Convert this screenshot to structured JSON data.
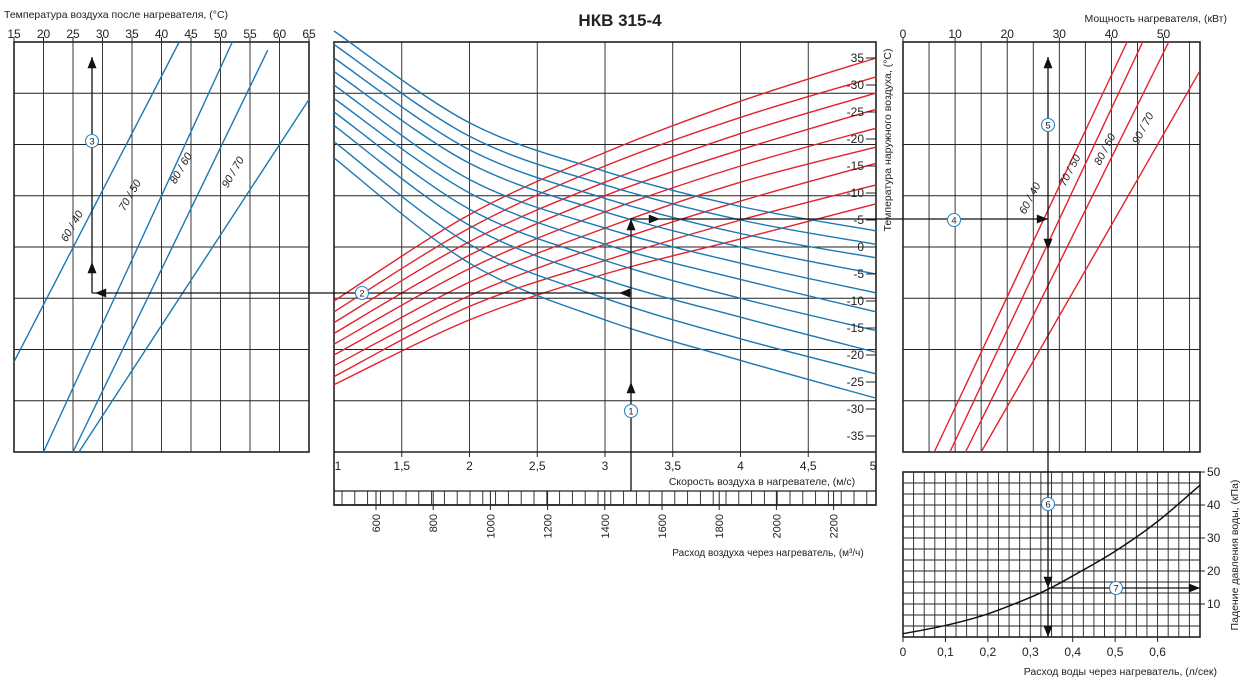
{
  "colors": {
    "red": "#e5202b",
    "blue": "#1a78b4",
    "grid": "#222222",
    "arrow": "#111111",
    "marker": "#2a86c4",
    "curve": "#111111"
  },
  "chart_data": [
    {
      "id": "main",
      "type": "line",
      "title": "НКВ 315-4",
      "xlabel": "Скорость воздуха в нагревателе, (м/с)",
      "x2label": "Расход воздуха через нагреватель, (м³/ч)",
      "ylabel": "Температура наружного воздуха, (°С)",
      "xlim": [
        1,
        5
      ],
      "x_ticks": [
        "1",
        "1,5",
        "2",
        "2,5",
        "3",
        "3,5",
        "4",
        "4,5",
        "5"
      ],
      "x2_ticks": [
        "600",
        "800",
        "1000",
        "1200",
        "1400",
        "1600",
        "1800",
        "2000",
        "2200"
      ],
      "y_ticks": [
        "35",
        "-30",
        "-25",
        "-20",
        "-15",
        "-10",
        "-5",
        "0",
        "-5",
        "-10",
        "-15",
        "-20",
        "-25",
        "-30",
        "-35"
      ],
      "red_series": [
        {
          "x": [
            1,
            2,
            3,
            4,
            5
          ],
          "y": [
            -10.0,
            6.0,
            17.5,
            27.0,
            35.0
          ]
        },
        {
          "x": [
            1,
            2,
            3,
            4,
            5
          ],
          "y": [
            -12.0,
            3.5,
            15.0,
            24.0,
            31.5
          ]
        },
        {
          "x": [
            1,
            2,
            3,
            4,
            5
          ],
          "y": [
            -14.0,
            1.0,
            12.0,
            21.0,
            28.5
          ]
        },
        {
          "x": [
            1,
            2,
            3,
            4,
            5
          ],
          "y": [
            -16.0,
            -1.5,
            9.5,
            18.0,
            25.5
          ]
        },
        {
          "x": [
            1,
            2,
            3,
            4,
            5
          ],
          "y": [
            -18.0,
            -4.0,
            6.5,
            15.0,
            22.0
          ]
        },
        {
          "x": [
            1,
            2,
            3,
            4,
            5
          ],
          "y": [
            -20.0,
            -6.5,
            3.5,
            12.0,
            18.5
          ]
        },
        {
          "x": [
            1,
            2,
            3,
            4,
            5
          ],
          "y": [
            -22.0,
            -9.0,
            0.5,
            8.5,
            15.5
          ]
        },
        {
          "x": [
            1,
            2,
            3,
            4,
            5
          ],
          "y": [
            -24.0,
            -11.0,
            -2.5,
            5.0,
            11.5
          ]
        },
        {
          "x": [
            1,
            2,
            3,
            4,
            5
          ],
          "y": [
            -25.5,
            -13.5,
            -5.0,
            1.5,
            8.0
          ]
        }
      ],
      "blue_series": [
        {
          "x": [
            1,
            2,
            3,
            4,
            5
          ],
          "y": [
            40.0,
            23.0,
            14.0,
            7.5,
            3.0
          ]
        },
        {
          "x": [
            1,
            2,
            3,
            4,
            5
          ],
          "y": [
            37.5,
            20.5,
            11.5,
            5.0,
            0.5
          ]
        },
        {
          "x": [
            1,
            2,
            3,
            4,
            5
          ],
          "y": [
            35.0,
            18.0,
            9.0,
            2.5,
            -2.0
          ]
        },
        {
          "x": [
            1,
            2,
            3,
            4,
            5
          ],
          "y": [
            32.5,
            15.5,
            6.5,
            0.0,
            -5.0
          ]
        },
        {
          "x": [
            1,
            2,
            3,
            4,
            5
          ],
          "y": [
            30.0,
            12.5,
            3.5,
            -3.0,
            -8.5
          ]
        },
        {
          "x": [
            1,
            2,
            3,
            4,
            5
          ],
          "y": [
            27.5,
            10.0,
            0.5,
            -6.0,
            -12.0
          ]
        },
        {
          "x": [
            1,
            2,
            3,
            4,
            5
          ],
          "y": [
            25.0,
            7.0,
            -2.5,
            -9.5,
            -15.5
          ]
        },
        {
          "x": [
            1,
            2,
            3,
            4,
            5
          ],
          "y": [
            22.5,
            4.0,
            -6.0,
            -13.0,
            -19.5
          ]
        },
        {
          "x": [
            1,
            2,
            3,
            4,
            5
          ],
          "y": [
            19.5,
            0.5,
            -9.5,
            -17.0,
            -23.5
          ]
        },
        {
          "x": [
            1,
            2,
            3,
            4,
            5
          ],
          "y": [
            16.5,
            -3.0,
            -13.5,
            -21.0,
            -28.0
          ]
        }
      ]
    },
    {
      "id": "left",
      "type": "line",
      "xlabel": "Температура воздуха после нагревателя, (°С)",
      "xlim": [
        15,
        65
      ],
      "x_ticks": [
        "15",
        "20",
        "25",
        "30",
        "35",
        "40",
        "45",
        "50",
        "55",
        "60",
        "65"
      ],
      "series": [
        {
          "name": "60 / 40",
          "x": [
            15,
            43
          ],
          "y": [
            0.22,
            1.0
          ]
        },
        {
          "name": "70 / 50",
          "x": [
            20,
            52
          ],
          "y": [
            0.0,
            1.0
          ]
        },
        {
          "name": "80 / 60",
          "x": [
            25,
            58
          ],
          "y": [
            0.0,
            0.98
          ]
        },
        {
          "name": "90 / 70",
          "x": [
            26,
            65
          ],
          "y": [
            0.0,
            0.86
          ]
        }
      ]
    },
    {
      "id": "power",
      "type": "line",
      "xlabel": "Мощность нагревателя, (кВт)",
      "xlim": [
        0,
        57
      ],
      "x_ticks": [
        "0",
        "10",
        "20",
        "30",
        "40",
        "50"
      ],
      "series": [
        {
          "name": "60 / 40",
          "x": [
            6,
            43
          ],
          "y": [
            0.0,
            1.0
          ]
        },
        {
          "name": "70 / 50",
          "x": [
            9,
            46
          ],
          "y": [
            0.0,
            1.0
          ]
        },
        {
          "name": "80 / 60",
          "x": [
            12,
            51
          ],
          "y": [
            0.0,
            1.0
          ]
        },
        {
          "name": "90 / 70",
          "x": [
            15,
            57
          ],
          "y": [
            0.0,
            0.93
          ]
        }
      ]
    },
    {
      "id": "pressure",
      "type": "line",
      "xlabel": "Расход воды через нагреватель, (л/сек)",
      "ylabel": "Падение давления воды, (кПа)",
      "xlim": [
        0,
        0.7
      ],
      "ylim": [
        0,
        50
      ],
      "x_ticks": [
        "0",
        "0,1",
        "0,2",
        "0,3",
        "0,4",
        "0,5",
        "0,6"
      ],
      "y_ticks": [
        "50",
        "40",
        "30",
        "20",
        "10"
      ],
      "series": [
        {
          "x": [
            0,
            0.1,
            0.2,
            0.3,
            0.35,
            0.4,
            0.5,
            0.6,
            0.7
          ],
          "y": [
            1.0,
            3.5,
            7.0,
            12.0,
            15.0,
            18.5,
            26.0,
            35.0,
            46.0
          ]
        }
      ]
    }
  ],
  "markers": [
    "1",
    "2",
    "3",
    "4",
    "5",
    "6",
    "7"
  ],
  "legend_labels": [
    "60 / 40",
    "70 / 50",
    "80 / 60",
    "90 / 70"
  ]
}
